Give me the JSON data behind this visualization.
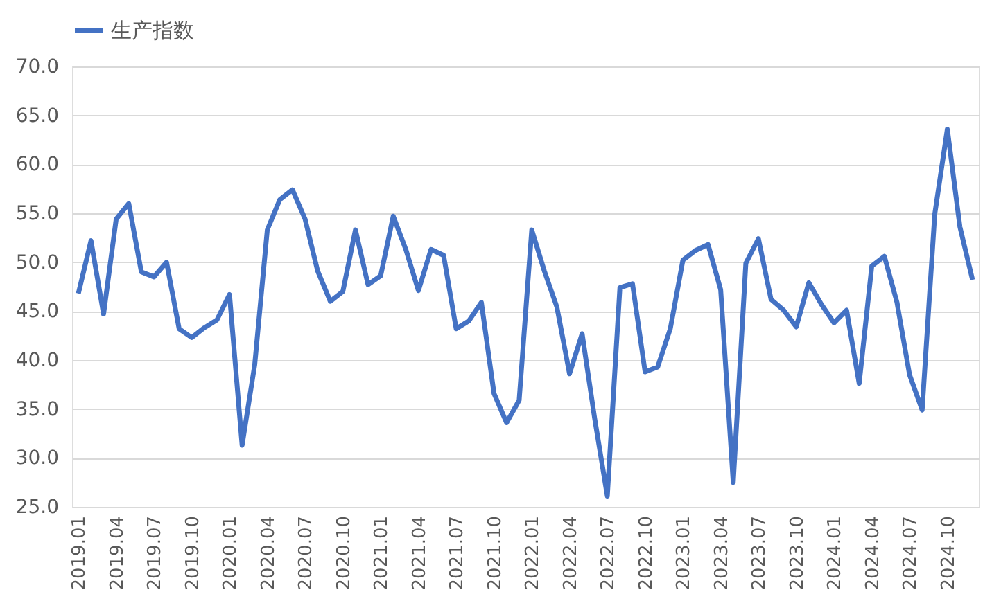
{
  "chart_data": {
    "type": "line",
    "categories": [
      "2019.01",
      null,
      null,
      "2019.04",
      null,
      null,
      "2019.07",
      null,
      null,
      "2019.10",
      null,
      null,
      "2020.01",
      null,
      null,
      "2020.04",
      null,
      null,
      "2020.07",
      null,
      null,
      "2020.10",
      null,
      null,
      "2021.01",
      null,
      null,
      "2021.04",
      null,
      null,
      "2021.07",
      null,
      null,
      "2021.10",
      null,
      null,
      "2022.01",
      null,
      null,
      "2022.04",
      null,
      null,
      "2022.07",
      null,
      null,
      "2022.10",
      null,
      null,
      "2023.01",
      null,
      null,
      "2023.04",
      null,
      null,
      "2023.07",
      null,
      null,
      "2023.10",
      null,
      null,
      "2024.01",
      null,
      null,
      "2024.04",
      null,
      null,
      "2024.07",
      null,
      null,
      "2024.10",
      null,
      null
    ],
    "series": [
      {
        "name": "生产指数",
        "color": "#4472c4",
        "values": [
          46.8,
          52.2,
          44.7,
          54.4,
          56.0,
          49.0,
          48.5,
          50.0,
          43.2,
          42.3,
          43.3,
          44.1,
          46.7,
          31.3,
          39.5,
          53.3,
          56.4,
          57.4,
          54.4,
          49.1,
          46.0,
          47.0,
          53.3,
          47.7,
          48.6,
          54.7,
          51.3,
          47.1,
          51.3,
          50.7,
          43.2,
          44.0,
          45.9,
          36.6,
          33.6,
          35.9,
          53.3,
          49.1,
          45.4,
          38.6,
          42.7,
          34.0,
          26.1,
          47.4,
          47.8,
          38.8,
          39.3,
          43.2,
          50.2,
          51.2,
          51.8,
          47.2,
          27.5,
          49.9,
          52.4,
          46.2,
          45.1,
          43.4,
          47.9,
          45.7,
          43.8,
          45.1,
          37.6,
          49.6,
          50.6,
          45.9,
          38.5,
          34.9,
          54.9,
          63.6,
          53.6,
          48.2
        ]
      }
    ],
    "ylim": [
      25,
      70
    ],
    "yticks": [
      {
        "value": 25,
        "label": "25.0"
      },
      {
        "value": 30,
        "label": "30.0"
      },
      {
        "value": 35,
        "label": "35.0"
      },
      {
        "value": 40,
        "label": "40.0"
      },
      {
        "value": 45,
        "label": "45.0"
      },
      {
        "value": 50,
        "label": "50.0"
      },
      {
        "value": 55,
        "label": "55.0"
      },
      {
        "value": 60,
        "label": "60.0"
      },
      {
        "value": 65,
        "label": "65.0"
      },
      {
        "value": 70,
        "label": "70.0"
      }
    ],
    "grid": "y",
    "legend": "top",
    "marker": "none",
    "line_style": "solid"
  }
}
